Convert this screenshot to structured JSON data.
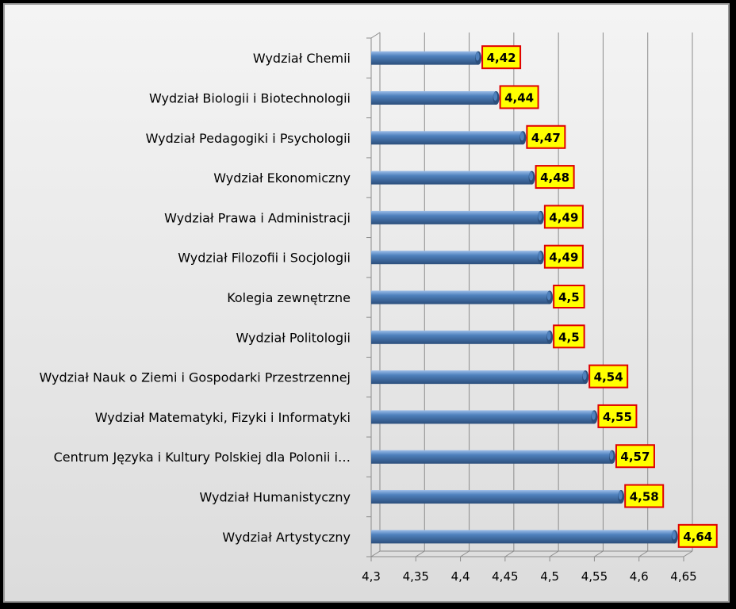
{
  "chart_data": {
    "type": "bar",
    "orientation": "horizontal",
    "categories": [
      "Wydział Chemii",
      "Wydział Biologii i Biotechnologii",
      "Wydział Pedagogiki i Psychologii",
      "Wydział Ekonomiczny",
      "Wydział Prawa i Administracji",
      "Wydział Filozofii i Socjologii",
      "Kolegia zewnętrzne",
      "Wydział Politologii",
      "Wydział Nauk o Ziemi i Gospodarki Przestrzennej",
      "Wydział Matematyki, Fizyki i Informatyki",
      "Centrum Języka i Kultury Polskiej dla Polonii i…",
      "Wydział Humanistyczny",
      "Wydział Artystyczny"
    ],
    "values": [
      4.42,
      4.44,
      4.47,
      4.48,
      4.49,
      4.49,
      4.5,
      4.5,
      4.54,
      4.55,
      4.57,
      4.58,
      4.64
    ],
    "value_labels": [
      "4,42",
      "4,44",
      "4,47",
      "4,48",
      "4,49",
      "4,49",
      "4,5",
      "4,5",
      "4,54",
      "4,55",
      "4,57",
      "4,58",
      "4,64"
    ],
    "xlim": [
      4.3,
      4.65
    ],
    "x_ticks": [
      4.3,
      4.35,
      4.4,
      4.45,
      4.5,
      4.55,
      4.6,
      4.65
    ],
    "x_tick_labels": [
      "4,3",
      "4,35",
      "4,4",
      "4,45",
      "4,5",
      "4,55",
      "4,6",
      "4,65"
    ],
    "grid": "vertical",
    "legend": "none",
    "title": "",
    "xlabel": "",
    "ylabel": "",
    "colors": {
      "bar": "#4f81bd",
      "bar_dark": "#2c4f7c",
      "bar_light": "#9cbde8",
      "label_fill": "#ffff00",
      "label_border": "#e00000",
      "grid": "#8c8c8c"
    }
  }
}
